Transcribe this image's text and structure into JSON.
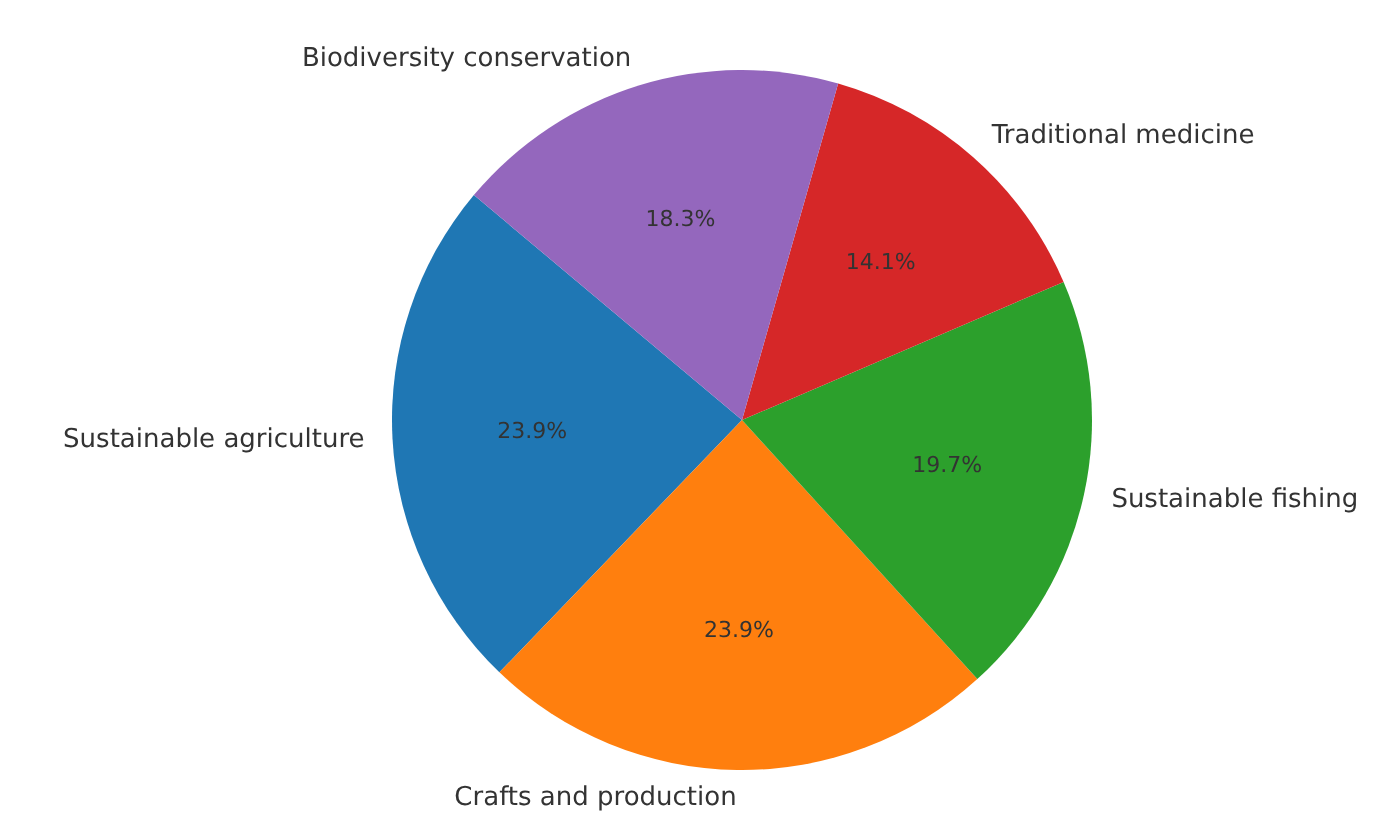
{
  "chart_data": {
    "type": "pie",
    "categories": [
      "Sustainable agriculture",
      "Crafts and production",
      "Sustainable fishing",
      "Traditional medicine",
      "Biodiversity conservation"
    ],
    "values": [
      23.9,
      23.9,
      19.7,
      14.1,
      18.3
    ],
    "colors": [
      "#1f77b4",
      "#ff7f0e",
      "#2ca02c",
      "#d62728",
      "#9467bd"
    ],
    "value_labels": [
      "23.9%",
      "23.9%",
      "19.7%",
      "14.1%",
      "18.3%"
    ],
    "legend": false
  }
}
